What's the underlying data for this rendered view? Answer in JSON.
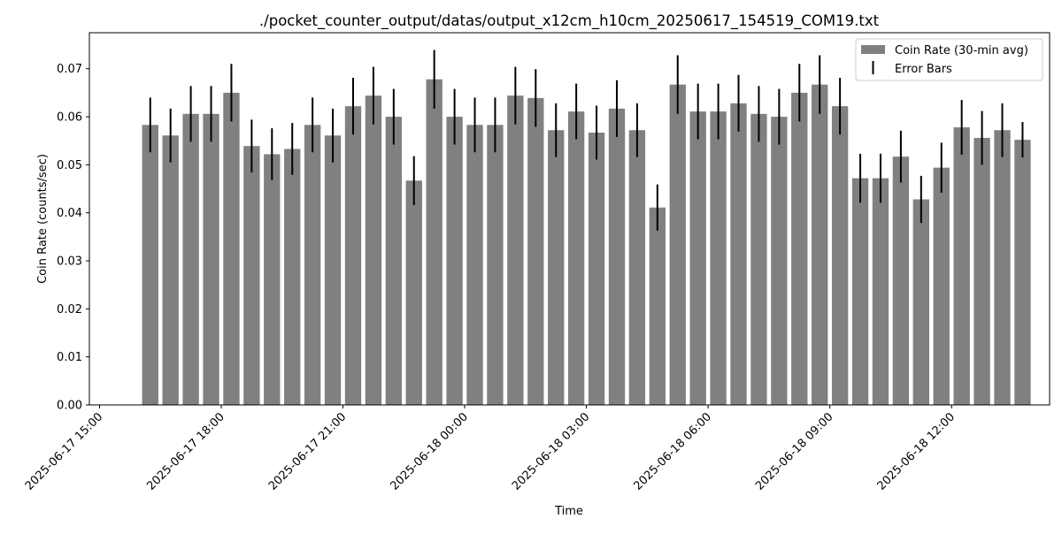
{
  "chart_data": {
    "type": "bar",
    "title": "./pocket_counter_output/datas/output_x12cm_h10cm_20250617_154519_COM19.txt",
    "xlabel": "Time",
    "ylabel": "Coin Rate (counts/sec)",
    "ylim": [
      0,
      0.0775
    ],
    "xlim": [
      "2025-06-17 14:45",
      "2025-06-18 14:25"
    ],
    "bar_width_minutes": 24,
    "y_ticks": [
      0.0,
      0.01,
      0.02,
      0.03,
      0.04,
      0.05,
      0.06,
      0.07
    ],
    "y_tick_labels": [
      "0.00",
      "0.01",
      "0.02",
      "0.03",
      "0.04",
      "0.05",
      "0.06",
      "0.07"
    ],
    "x_ticks": [
      "2025-06-17 15:00",
      "2025-06-17 18:00",
      "2025-06-17 21:00",
      "2025-06-18 00:00",
      "2025-06-18 03:00",
      "2025-06-18 06:00",
      "2025-06-18 09:00",
      "2025-06-18 12:00"
    ],
    "x_tick_labels": [
      "2025-06-17 15:00",
      "2025-06-17 18:00",
      "2025-06-17 21:00",
      "2025-06-18 00:00",
      "2025-06-18 03:00",
      "2025-06-18 06:00",
      "2025-06-18 09:00",
      "2025-06-18 12:00"
    ],
    "grid": false,
    "legend_position": "top-right",
    "legend": [
      {
        "label": "Coin Rate (30-min avg)",
        "kind": "bar"
      },
      {
        "label": "Error Bars",
        "kind": "errorbar"
      }
    ],
    "series": [
      {
        "color": "#808080",
        "error_color": "#000000",
        "x": [
          "2025-06-17 16:15",
          "2025-06-17 16:45",
          "2025-06-17 17:15",
          "2025-06-17 17:45",
          "2025-06-17 18:15",
          "2025-06-17 18:45",
          "2025-06-17 19:15",
          "2025-06-17 19:45",
          "2025-06-17 20:15",
          "2025-06-17 20:45",
          "2025-06-17 21:15",
          "2025-06-17 21:45",
          "2025-06-17 22:15",
          "2025-06-17 22:45",
          "2025-06-17 23:15",
          "2025-06-17 23:45",
          "2025-06-18 00:15",
          "2025-06-18 00:45",
          "2025-06-18 01:15",
          "2025-06-18 01:45",
          "2025-06-18 02:15",
          "2025-06-18 02:45",
          "2025-06-18 03:15",
          "2025-06-18 03:45",
          "2025-06-18 04:15",
          "2025-06-18 04:45",
          "2025-06-18 05:15",
          "2025-06-18 05:45",
          "2025-06-18 06:15",
          "2025-06-18 06:45",
          "2025-06-18 07:15",
          "2025-06-18 07:45",
          "2025-06-18 08:15",
          "2025-06-18 08:45",
          "2025-06-18 09:15",
          "2025-06-18 09:45",
          "2025-06-18 10:15",
          "2025-06-18 10:45",
          "2025-06-18 11:15",
          "2025-06-18 11:45",
          "2025-06-18 12:15",
          "2025-06-18 12:45",
          "2025-06-18 13:15",
          "2025-06-18 13:45"
        ],
        "values": [
          0.0583,
          0.0561,
          0.0606,
          0.0606,
          0.065,
          0.0539,
          0.0522,
          0.0533,
          0.0583,
          0.0561,
          0.0622,
          0.0644,
          0.06,
          0.0467,
          0.0678,
          0.06,
          0.0583,
          0.0583,
          0.0644,
          0.0639,
          0.0572,
          0.0611,
          0.0567,
          0.0617,
          0.0572,
          0.0411,
          0.0667,
          0.0611,
          0.0611,
          0.0628,
          0.0606,
          0.06,
          0.065,
          0.0667,
          0.0622,
          0.0472,
          0.0472,
          0.0517,
          0.0428,
          0.0494,
          0.0578,
          0.0556,
          0.0572,
          0.0552
        ],
        "errors": [
          0.0057,
          0.0056,
          0.0058,
          0.0058,
          0.006,
          0.0055,
          0.0054,
          0.0054,
          0.0057,
          0.0056,
          0.0059,
          0.006,
          0.0058,
          0.0051,
          0.0061,
          0.0058,
          0.0057,
          0.0057,
          0.006,
          0.006,
          0.0056,
          0.0058,
          0.0056,
          0.0059,
          0.0056,
          0.0048,
          0.0061,
          0.0058,
          0.0058,
          0.0059,
          0.0058,
          0.0058,
          0.006,
          0.0061,
          0.0059,
          0.0051,
          0.0051,
          0.0054,
          0.0049,
          0.0052,
          0.0057,
          0.0056,
          0.0056,
          0.0037
        ]
      }
    ]
  }
}
